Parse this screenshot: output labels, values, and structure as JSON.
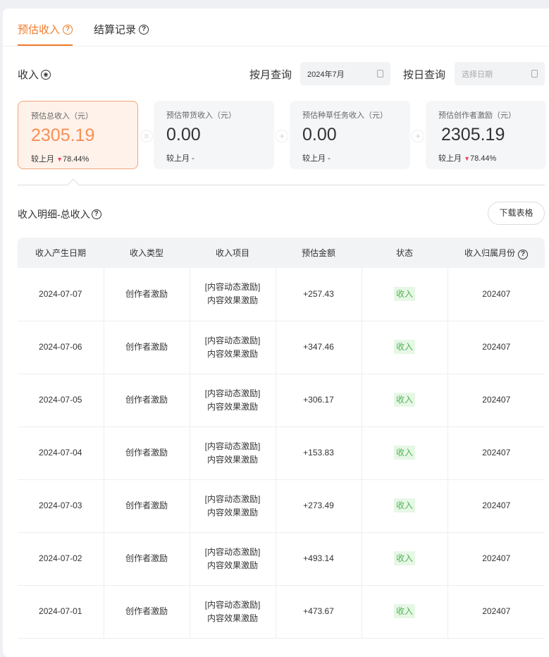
{
  "tabs": [
    {
      "label": "预估收入",
      "active": true
    },
    {
      "label": "结算记录",
      "active": false
    }
  ],
  "income_label": "收入",
  "month_query": {
    "label": "按月查询",
    "value": "2024年7月"
  },
  "day_query": {
    "label": "按日查询",
    "placeholder": "选择日期"
  },
  "stats": [
    {
      "title": "预估总收入（元）",
      "value": "2305.19",
      "compare_label": "较上月",
      "compare": "78.44%",
      "trend": "down"
    },
    {
      "title": "预估带货收入（元）",
      "value": "0.00",
      "compare_label": "较上月",
      "compare": "-"
    },
    {
      "title": "预估种草任务收入（元）",
      "value": "0.00",
      "compare_label": "较上月",
      "compare": "-"
    },
    {
      "title": "预估创作者激励（元）",
      "value": "2305.19",
      "compare_label": "较上月",
      "compare": "78.44%",
      "trend": "down"
    }
  ],
  "operators": [
    "=",
    "+",
    "+"
  ],
  "detail_title": "收入明细-总收入",
  "download_label": "下载表格",
  "table": {
    "headers": [
      "收入产生日期",
      "收入类型",
      "收入项目",
      "预估金额",
      "状态",
      "收入归属月份"
    ],
    "rows": [
      {
        "date": "2024-07-07",
        "type": "创作者激励",
        "item1": "[内容动态激励]",
        "item2": "内容效果激励",
        "amount": "+257.43",
        "status": "收入",
        "month": "202407"
      },
      {
        "date": "2024-07-06",
        "type": "创作者激励",
        "item1": "[内容动态激励]",
        "item2": "内容效果激励",
        "amount": "+347.46",
        "status": "收入",
        "month": "202407"
      },
      {
        "date": "2024-07-05",
        "type": "创作者激励",
        "item1": "[内容动态激励]",
        "item2": "内容效果激励",
        "amount": "+306.17",
        "status": "收入",
        "month": "202407"
      },
      {
        "date": "2024-07-04",
        "type": "创作者激励",
        "item1": "[内容动态激励]",
        "item2": "内容效果激励",
        "amount": "+153.83",
        "status": "收入",
        "month": "202407"
      },
      {
        "date": "2024-07-03",
        "type": "创作者激励",
        "item1": "[内容动态激励]",
        "item2": "内容效果激励",
        "amount": "+273.49",
        "status": "收入",
        "month": "202407"
      },
      {
        "date": "2024-07-02",
        "type": "创作者激励",
        "item1": "[内容动态激励]",
        "item2": "内容效果激励",
        "amount": "+493.14",
        "status": "收入",
        "month": "202407"
      },
      {
        "date": "2024-07-01",
        "type": "创作者激励",
        "item1": "[内容动态激励]",
        "item2": "内容效果激励",
        "amount": "+473.67",
        "status": "收入",
        "month": "202407"
      }
    ]
  },
  "colors": {
    "accent": "#f07c2a",
    "status_green": "#52b456",
    "down": "#f0455a"
  }
}
